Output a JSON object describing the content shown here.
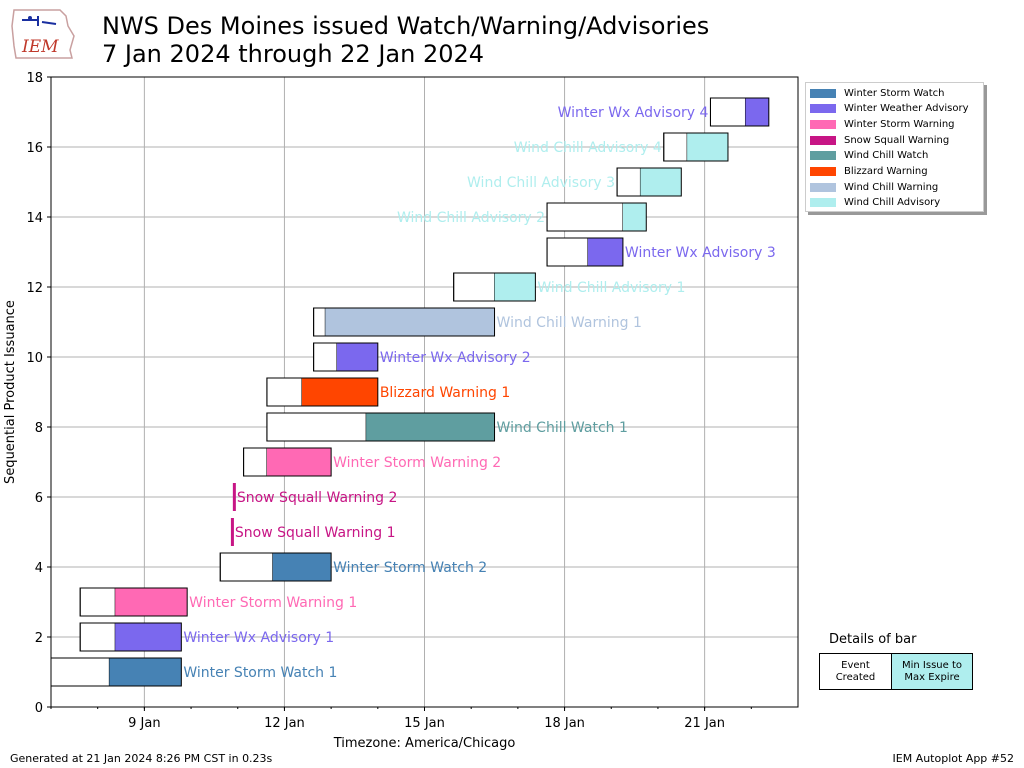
{
  "title_line1": "NWS Des Moines issued Watch/Warning/Advisories",
  "title_line2": "7 Jan 2024 through 22 Jan 2024",
  "logo_text": "IEM",
  "footer_left": "Generated at 21 Jan 2024 8:26 PM CST in 0.23s",
  "footer_right": "IEM Autoplot App #52",
  "details": {
    "title": "Details of bar",
    "created": "Event\nCreated",
    "expire": "Min Issue to\nMax Expire"
  },
  "colors": {
    "Winter Storm Watch": "#4682b4",
    "Winter Weather Advisory": "#7b68ee",
    "Winter Storm Warning": "#ff69b4",
    "Snow Squall Warning": "#c71585",
    "Wind Chill Watch": "#5f9ea0",
    "Blizzard Warning": "#ff4500",
    "Wind Chill Warning": "#b0c4de",
    "Wind Chill Advisory": "#afeeee"
  },
  "legend": [
    "Winter Storm Watch",
    "Winter Weather Advisory",
    "Winter Storm Warning",
    "Snow Squall Warning",
    "Wind Chill Watch",
    "Blizzard Warning",
    "Wind Chill Warning",
    "Wind Chill Advisory"
  ],
  "chart_data": {
    "type": "bar",
    "orientation": "horizontal-timeline",
    "xlabel": "Timezone: America/Chicago",
    "ylabel": "Sequential Product Issuance",
    "xlim": [
      "2024-01-07 00:00",
      "2024-01-23 00:00"
    ],
    "ylim": [
      0,
      18
    ],
    "x_ticks": [
      "9 Jan",
      "12 Jan",
      "15 Jan",
      "18 Jan",
      "21 Jan"
    ],
    "y_ticks": [
      0,
      2,
      4,
      6,
      8,
      10,
      12,
      14,
      16,
      18
    ],
    "grid": true,
    "legend_position": "top-right",
    "bars": [
      {
        "y": 1,
        "label": "Winter Storm Watch 1",
        "phenomena": "Winter Storm Watch",
        "created": "2024-01-07 00:00",
        "issue": "2024-01-08 06:00",
        "expire": "2024-01-09 19:00"
      },
      {
        "y": 2,
        "label": "Winter Wx Advisory 1",
        "phenomena": "Winter Weather Advisory",
        "created": "2024-01-07 15:00",
        "issue": "2024-01-08 09:00",
        "expire": "2024-01-09 19:00"
      },
      {
        "y": 3,
        "label": "Winter Storm Warning 1",
        "phenomena": "Winter Storm Warning",
        "created": "2024-01-07 15:00",
        "issue": "2024-01-08 09:00",
        "expire": "2024-01-09 22:00"
      },
      {
        "y": 4,
        "label": "Winter Storm Watch 2",
        "phenomena": "Winter Storm Watch",
        "created": "2024-01-10 15:00",
        "issue": "2024-01-11 18:00",
        "expire": "2024-01-13 00:00"
      },
      {
        "y": 5,
        "label": "Snow Squall Warning 1",
        "phenomena": "Snow Squall Warning",
        "created": "2024-01-10 21:00",
        "issue": "2024-01-10 21:00",
        "expire": "2024-01-10 21:30"
      },
      {
        "y": 6,
        "label": "Snow Squall Warning 2",
        "phenomena": "Snow Squall Warning",
        "created": "2024-01-10 22:00",
        "issue": "2024-01-10 22:00",
        "expire": "2024-01-10 22:30"
      },
      {
        "y": 7,
        "label": "Winter Storm Warning 2",
        "phenomena": "Winter Storm Warning",
        "created": "2024-01-11 03:00",
        "issue": "2024-01-11 15:00",
        "expire": "2024-01-13 00:00"
      },
      {
        "y": 8,
        "label": "Wind Chill Watch 1",
        "phenomena": "Wind Chill Watch",
        "created": "2024-01-11 15:00",
        "issue": "2024-01-13 18:00",
        "expire": "2024-01-16 12:00"
      },
      {
        "y": 9,
        "label": "Blizzard Warning 1",
        "phenomena": "Blizzard Warning",
        "created": "2024-01-11 15:00",
        "issue": "2024-01-12 09:00",
        "expire": "2024-01-14 00:00"
      },
      {
        "y": 10,
        "label": "Winter Wx Advisory 2",
        "phenomena": "Winter Weather Advisory",
        "created": "2024-01-12 15:00",
        "issue": "2024-01-13 03:00",
        "expire": "2024-01-14 00:00"
      },
      {
        "y": 11,
        "label": "Wind Chill Warning 1",
        "phenomena": "Wind Chill Warning",
        "created": "2024-01-12 15:00",
        "issue": "2024-01-12 21:00",
        "expire": "2024-01-16 12:00"
      },
      {
        "y": 12,
        "label": "Wind Chill Advisory 1",
        "phenomena": "Wind Chill Advisory",
        "created": "2024-01-15 15:00",
        "issue": "2024-01-16 12:00",
        "expire": "2024-01-17 09:00"
      },
      {
        "y": 13,
        "label": "Winter Wx Advisory 3",
        "phenomena": "Winter Weather Advisory",
        "created": "2024-01-17 15:00",
        "issue": "2024-01-18 12:00",
        "expire": "2024-01-19 06:00"
      },
      {
        "y": 14,
        "label": "Wind Chill Advisory 2",
        "phenomena": "Wind Chill Advisory",
        "created": "2024-01-17 15:00",
        "issue": "2024-01-19 06:00",
        "expire": "2024-01-19 18:00"
      },
      {
        "y": 15,
        "label": "Wind Chill Advisory 3",
        "phenomena": "Wind Chill Advisory",
        "created": "2024-01-19 03:00",
        "issue": "2024-01-19 15:00",
        "expire": "2024-01-20 12:00"
      },
      {
        "y": 16,
        "label": "Wind Chill Advisory 4",
        "phenomena": "Wind Chill Advisory",
        "created": "2024-01-20 03:00",
        "issue": "2024-01-20 15:00",
        "expire": "2024-01-21 12:00"
      },
      {
        "y": 17,
        "label": "Winter Wx Advisory 4",
        "phenomena": "Winter Weather Advisory",
        "created": "2024-01-21 03:00",
        "issue": "2024-01-21 21:00",
        "expire": "2024-01-22 09:00"
      }
    ]
  }
}
